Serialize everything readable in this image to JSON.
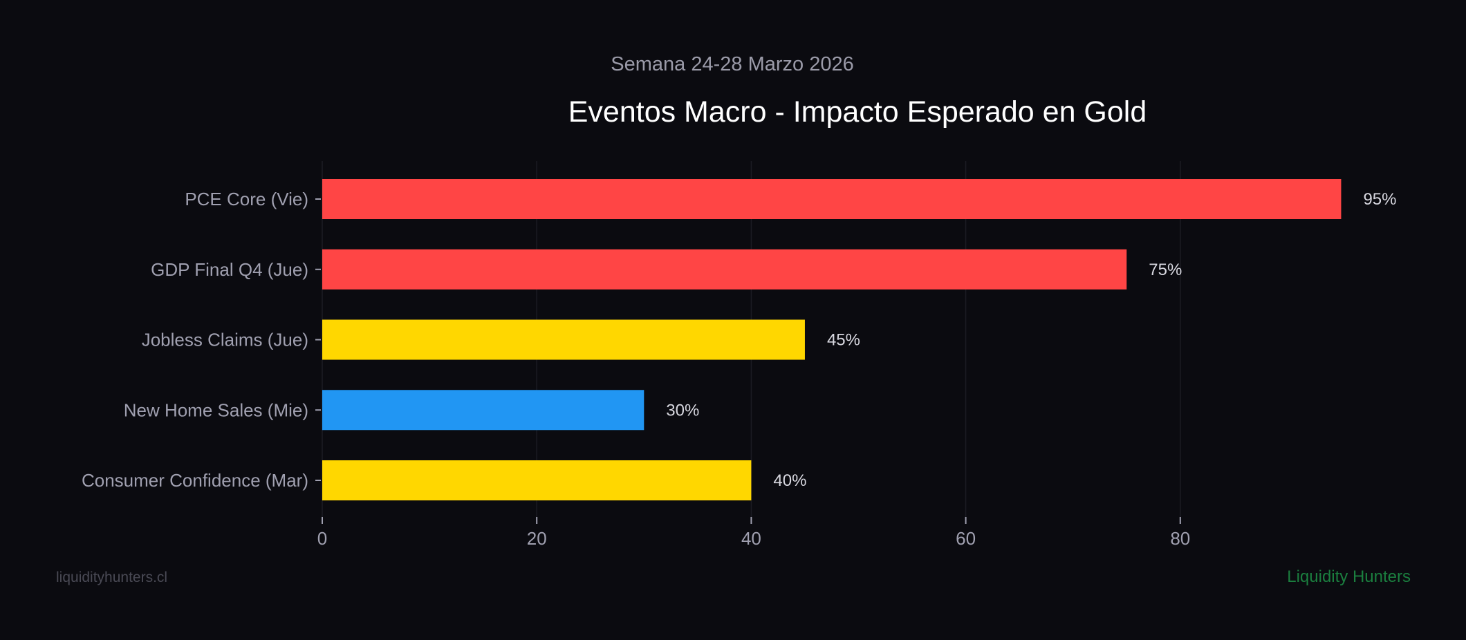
{
  "chart_data": {
    "type": "bar",
    "orientation": "horizontal",
    "title": "Eventos Macro - Impacto Esperado en Gold",
    "subtitle": "Semana 24-28 Marzo 2026",
    "xlabel": "",
    "ylabel": "",
    "categories": [
      "PCE Core (Vie)",
      "GDP Final Q4 (Jue)",
      "Jobless Claims (Jue)",
      "New Home Sales (Mie)",
      "Consumer Confidence (Mar)"
    ],
    "values": [
      95,
      75,
      45,
      30,
      40
    ],
    "value_labels": [
      "95%",
      "75%",
      "45%",
      "30%",
      "40%"
    ],
    "bar_colors": [
      "#ff4545",
      "#ff4545",
      "#ffd700",
      "#2196f3",
      "#ffd700"
    ],
    "xticks": [
      0,
      20,
      40,
      60,
      80
    ],
    "xtick_labels": [
      "0",
      "20",
      "40",
      "60",
      "80"
    ],
    "xlim": [
      0,
      100
    ],
    "grid": "vertical"
  },
  "footer": {
    "left_watermark": "liquidityhunters.cl",
    "right_brand": "Liquidity Hunters"
  },
  "colors": {
    "background": "#0b0b10",
    "text": "#a0a0b0",
    "title": "#ffffff",
    "brand": "#1b7f3f"
  }
}
